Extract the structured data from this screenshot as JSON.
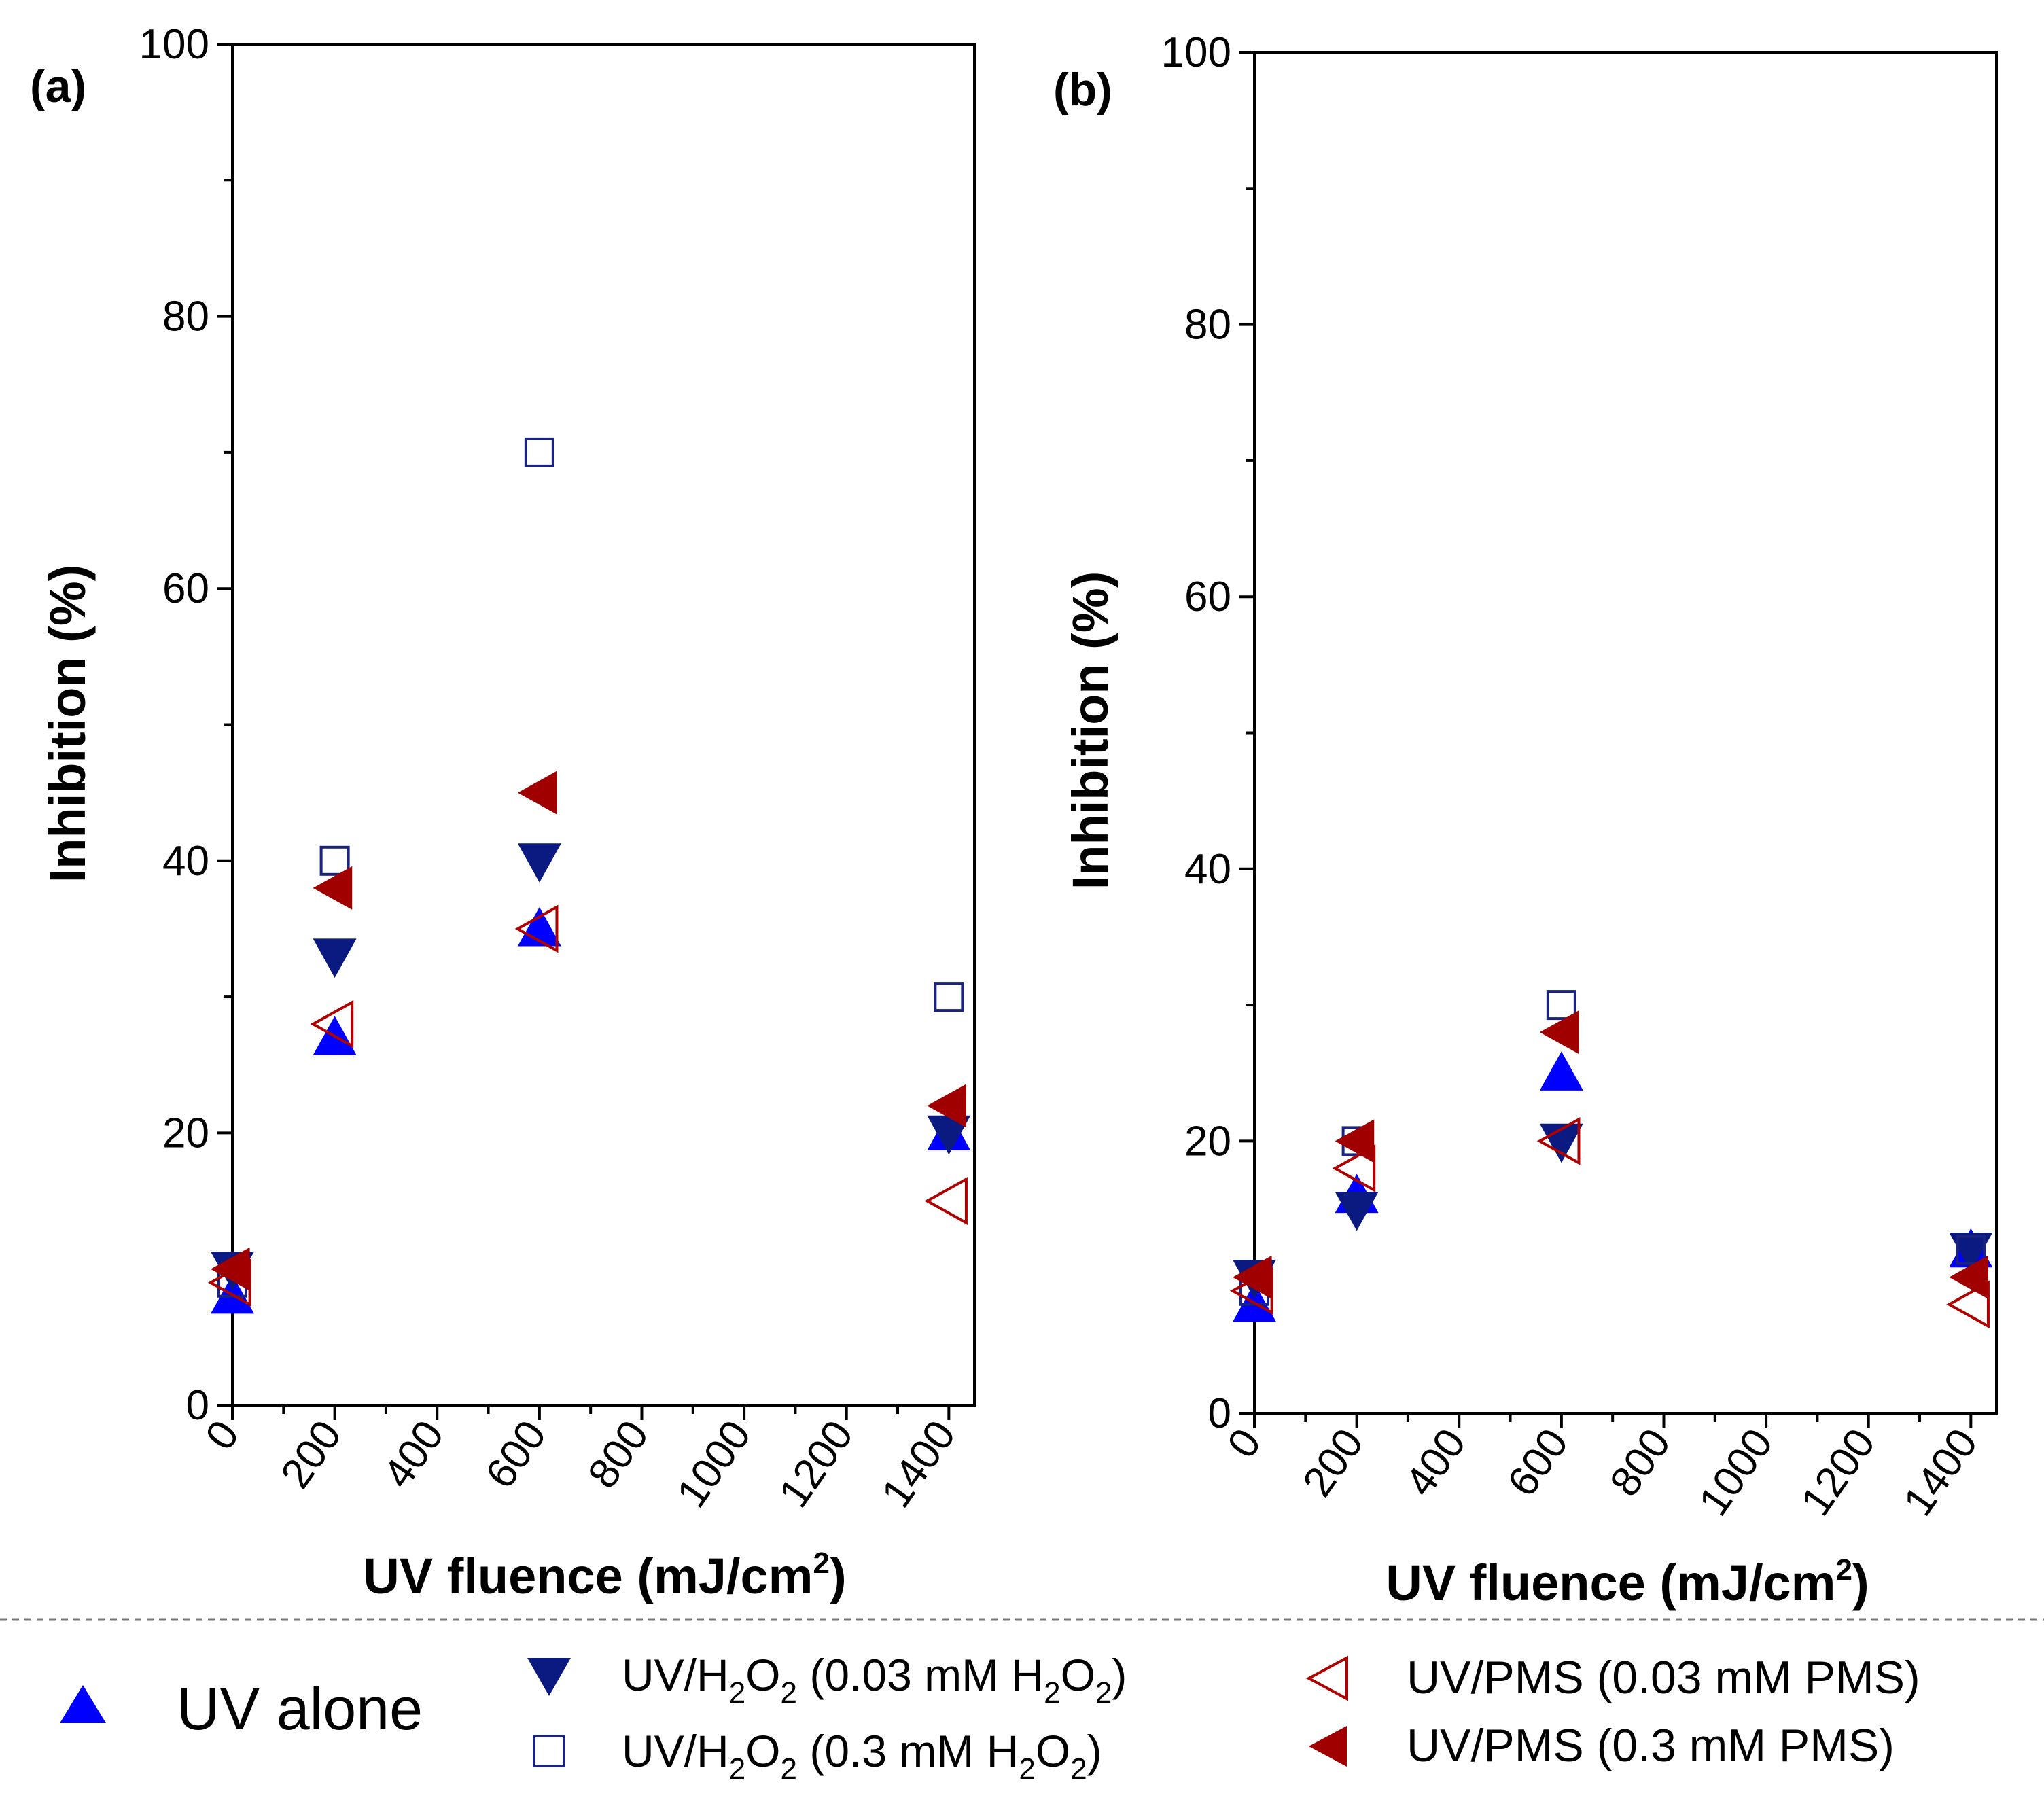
{
  "chart_data": [
    {
      "type": "scatter",
      "panel_label": "(a)",
      "xlabel": "UV fluence (mJ/cm",
      "xlabel_sup": "2",
      "xlabel_end": ")",
      "ylabel": "Inhibition (%)",
      "xlim": [
        0,
        1450
      ],
      "ylim": [
        0,
        100
      ],
      "xticks": [
        0,
        200,
        400,
        600,
        800,
        1000,
        1200,
        1400
      ],
      "xtick_labels": [
        "0",
        "200",
        "400",
        "600",
        "800",
        "1000",
        "1200",
        "1400"
      ],
      "yticks": [
        0,
        20,
        40,
        60,
        80,
        100
      ],
      "ytick_labels": [
        "0",
        "20",
        "40",
        "60",
        "80",
        "100"
      ],
      "series": [
        {
          "name": "UV alone",
          "marker": "triangle-up",
          "filled": true,
          "color": "#0000ff",
          "x": [
            0,
            200,
            600,
            1400
          ],
          "y": [
            8,
            27,
            35,
            20
          ]
        },
        {
          "name": "UV/H2O2 (0.03 mM H2O2)",
          "marker": "triangle-down",
          "filled": true,
          "color": "#0b1a80",
          "x": [
            0,
            200,
            600,
            1400
          ],
          "y": [
            10,
            33,
            40,
            20
          ]
        },
        {
          "name": "UV/H2O2 (0.3 mM H2O2)",
          "marker": "square",
          "filled": false,
          "color": "#1a237e",
          "x": [
            0,
            200,
            600,
            1400
          ],
          "y": [
            9,
            40,
            70,
            30
          ]
        },
        {
          "name": "UV/PMS (0.03 mM PMS)",
          "marker": "triangle-left",
          "filled": false,
          "color": "#b00000",
          "x": [
            0,
            200,
            600,
            1400
          ],
          "y": [
            9,
            28,
            35,
            15
          ]
        },
        {
          "name": "UV/PMS (0.3 mM PMS)",
          "marker": "triangle-left",
          "filled": true,
          "color": "#a00000",
          "x": [
            0,
            200,
            600,
            1400
          ],
          "y": [
            10,
            38,
            45,
            22
          ]
        }
      ]
    },
    {
      "type": "scatter",
      "panel_label": "(b)",
      "xlabel": "UV fluence (mJ/cm",
      "xlabel_sup": "2",
      "xlabel_end": ")",
      "ylabel": "Inhibition (%)",
      "xlim": [
        0,
        1450
      ],
      "ylim": [
        0,
        100
      ],
      "xticks": [
        0,
        200,
        400,
        600,
        800,
        1000,
        1200,
        1400
      ],
      "xtick_labels": [
        "0",
        "200",
        "400",
        "600",
        "800",
        "1000",
        "1200",
        "1400"
      ],
      "yticks": [
        0,
        20,
        40,
        60,
        80,
        100
      ],
      "ytick_labels": [
        "0",
        "20",
        "40",
        "60",
        "80",
        "100"
      ],
      "series": [
        {
          "name": "UV alone",
          "marker": "triangle-up",
          "filled": true,
          "color": "#0000ff",
          "x": [
            0,
            200,
            600,
            1400
          ],
          "y": [
            8,
            16,
            25,
            12
          ]
        },
        {
          "name": "UV/H2O2 (0.03 mM H2O2)",
          "marker": "triangle-down",
          "filled": true,
          "color": "#0b1a80",
          "x": [
            0,
            200,
            600,
            1400
          ],
          "y": [
            10,
            15,
            20,
            12
          ]
        },
        {
          "name": "UV/H2O2 (0.3 mM H2O2)",
          "marker": "square",
          "filled": false,
          "color": "#1a237e",
          "x": [
            0,
            200,
            600,
            1400
          ],
          "y": [
            9,
            20,
            30,
            12
          ]
        },
        {
          "name": "UV/PMS (0.03 mM PMS)",
          "marker": "triangle-left",
          "filled": false,
          "color": "#b00000",
          "x": [
            0,
            200,
            600,
            1400
          ],
          "y": [
            9,
            18,
            20,
            8
          ]
        },
        {
          "name": "UV/PMS (0.3 mM PMS)",
          "marker": "triangle-left",
          "filled": true,
          "color": "#a00000",
          "x": [
            0,
            200,
            600,
            1400
          ],
          "y": [
            10,
            20,
            28,
            10
          ]
        }
      ]
    }
  ],
  "legend": {
    "uv_alone": "UV alone",
    "h2o2_low": {
      "prefix": "UV/H",
      "sub1": "2",
      "mid1": "O",
      "sub2": "2",
      "mid2": " (0.03 mM H",
      "sub3": "2",
      "mid3": "O",
      "sub4": "2",
      "suffix": ")"
    },
    "h2o2_high": {
      "prefix": "UV/H",
      "sub1": "2",
      "mid1": "O",
      "sub2": "2",
      "mid2": " (0.3 mM H",
      "sub3": "2",
      "mid3": "O",
      "sub4": "2",
      "suffix": ")"
    },
    "pms_low": "UV/PMS (0.03 mM PMS)",
    "pms_high": "UV/PMS (0.3 mM PMS)"
  }
}
